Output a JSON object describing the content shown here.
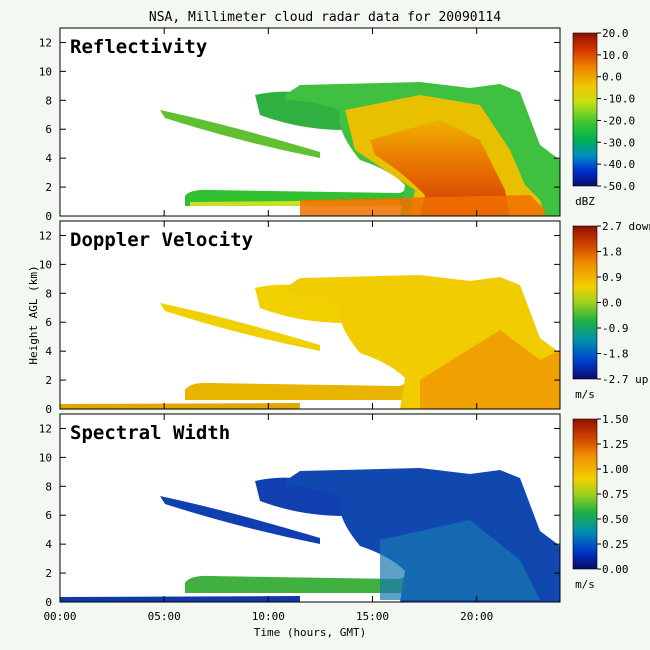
{
  "figure": {
    "title": "NSA, Millimeter cloud radar data for 20090114",
    "background": "#f4f8f2"
  },
  "chart_data": [
    {
      "type": "heatmap",
      "title": "Reflectivity",
      "xlabel": "",
      "ylabel": "",
      "xlim": [
        0,
        24
      ],
      "ylim": [
        0,
        13
      ],
      "y_ticks": [
        0,
        2,
        4,
        6,
        8,
        10,
        12
      ],
      "x_ticks": [],
      "grid": false,
      "colorbar": {
        "unit": "dBZ",
        "range": [
          -50,
          20
        ],
        "tick_values": [
          20,
          10,
          0,
          -10,
          -20,
          -30,
          -40,
          -50
        ],
        "tick_labels": [
          "20.0",
          "10.0",
          "0.0",
          "-10.0",
          "-20.0",
          "-30.0",
          "-40.0",
          "-50.0"
        ]
      },
      "features": [
        {
          "name": "low cloud layer",
          "x_start": 6.0,
          "x_end": 17.5,
          "base_km": 0.2,
          "top_km": 1.8
        },
        {
          "name": "upper sloping layer",
          "x_start": 6.5,
          "x_end": 17.0,
          "base_km": 4.5,
          "top_km": 8.8
        },
        {
          "name": "deep precipitating system",
          "x_start": 14.5,
          "x_end": 24.0,
          "base_km": 0.0,
          "top_km": 9.0
        }
      ]
    },
    {
      "type": "heatmap",
      "title": "Doppler Velocity",
      "xlabel": "",
      "ylabel": "Height AGL (km)",
      "xlim": [
        0,
        24
      ],
      "ylim": [
        0,
        13
      ],
      "y_ticks": [
        0,
        2,
        4,
        6,
        8,
        10,
        12
      ],
      "x_ticks": [],
      "grid": false,
      "colorbar": {
        "unit": "m/s",
        "range": [
          -2.7,
          2.7
        ],
        "tick_values": [
          2.7,
          1.8,
          0.9,
          0.0,
          -0.9,
          -1.8,
          -2.7
        ],
        "tick_labels": [
          "2.7 down",
          "1.8",
          "0.9",
          "0.0",
          "-0.9",
          "-1.8",
          "-2.7 up"
        ]
      },
      "features": [
        {
          "name": "low cloud layer",
          "x_start": 6.0,
          "x_end": 17.5,
          "base_km": 0.2,
          "top_km": 1.8
        },
        {
          "name": "upper sloping layer",
          "x_start": 6.5,
          "x_end": 17.0,
          "base_km": 4.5,
          "top_km": 8.8
        },
        {
          "name": "deep precipitating system",
          "x_start": 14.5,
          "x_end": 24.0,
          "base_km": 0.0,
          "top_km": 9.0
        }
      ]
    },
    {
      "type": "heatmap",
      "title": "Spectral Width",
      "xlabel": "Time (hours, GMT)",
      "ylabel": "",
      "xlim": [
        0,
        24
      ],
      "ylim": [
        0,
        13
      ],
      "y_ticks": [
        0,
        2,
        4,
        6,
        8,
        10,
        12
      ],
      "x_ticks": [
        0,
        5,
        10,
        15,
        20
      ],
      "x_tick_labels": [
        "00:00",
        "05:00",
        "10:00",
        "15:00",
        "20:00"
      ],
      "grid": false,
      "colorbar": {
        "unit": "m/s",
        "range": [
          0,
          1.5
        ],
        "tick_values": [
          1.5,
          1.25,
          1.0,
          0.75,
          0.5,
          0.25,
          0.0
        ],
        "tick_labels": [
          "1.50",
          "1.25",
          "1.00",
          "0.75",
          "0.50",
          "0.25",
          "0.00"
        ]
      },
      "features": [
        {
          "name": "low cloud layer",
          "x_start": 6.0,
          "x_end": 17.5,
          "base_km": 0.2,
          "top_km": 1.8
        },
        {
          "name": "upper sloping layer",
          "x_start": 6.5,
          "x_end": 17.0,
          "base_km": 4.5,
          "top_km": 8.8
        },
        {
          "name": "deep precipitating system",
          "x_start": 14.5,
          "x_end": 24.0,
          "base_km": 0.0,
          "top_km": 9.0
        }
      ]
    }
  ]
}
